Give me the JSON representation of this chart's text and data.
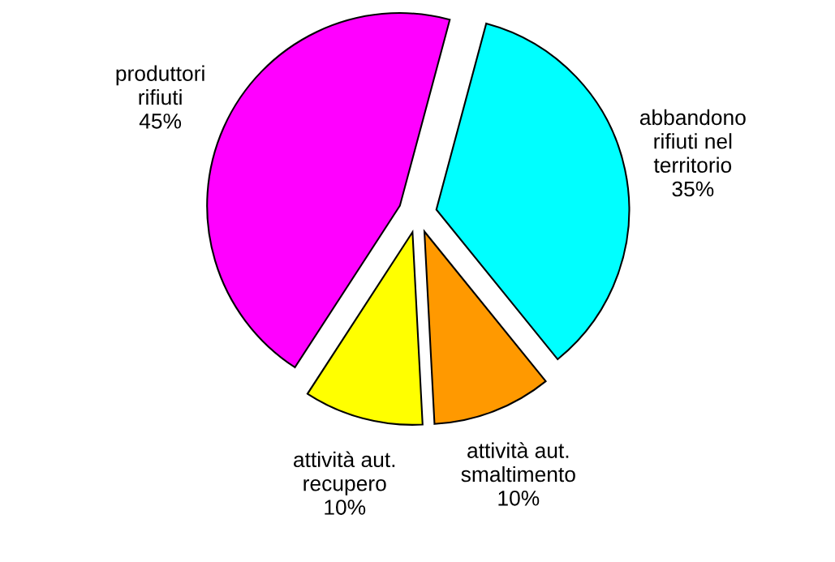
{
  "chart_data": {
    "type": "pie",
    "categories": [
      "produttori\nrifiuti",
      "attività aut.\nrecupero",
      "attività aut.\nsmaltimento",
      "abbandono\nrifiuti nel\nterritorio"
    ],
    "values": [
      45,
      10,
      10,
      35
    ],
    "value_labels": [
      "45%",
      "10%",
      "10%",
      "35%"
    ],
    "colors": [
      "#ff00ff",
      "#ffff00",
      "#ff9900",
      "#00ffff"
    ]
  }
}
